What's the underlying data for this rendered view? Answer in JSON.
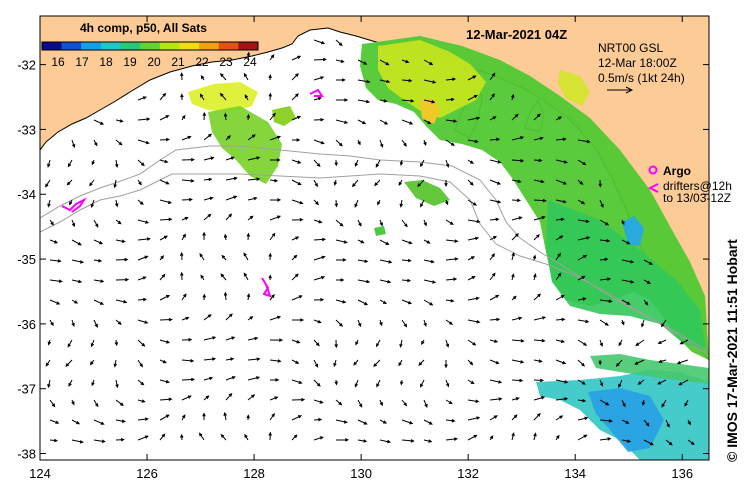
{
  "map": {
    "title": "12-Mar-2021 04Z",
    "product_label": "4h comp, p50, All Sats",
    "colorbar": {
      "ticks": [
        "16",
        "17",
        "18",
        "19",
        "20",
        "21",
        "22",
        "23",
        "24"
      ],
      "colors": [
        "#0a0a8c",
        "#1450d2",
        "#14a0e6",
        "#1ec8c8",
        "#28c878",
        "#64d232",
        "#b4e614",
        "#f0dc14",
        "#f0a014",
        "#e65014",
        "#a01414"
      ]
    },
    "current_legend": {
      "line1": "NRT00 GSL",
      "line2": "12-Mar 18:00Z",
      "line3": "0.5m/s (1kt 24h)"
    },
    "drifter_legend": {
      "argo_label": "Argo",
      "drifters_label": "drifters@12h",
      "drifters_until": "to 13/03-12Z"
    },
    "credit": "© IMOS 17-Mar-2021 11:51 Hobart",
    "x_axis": {
      "ticks": [
        "124",
        "126",
        "128",
        "130",
        "132",
        "134",
        "136"
      ],
      "values": [
        124,
        126,
        128,
        130,
        132,
        134,
        136
      ]
    },
    "y_axis": {
      "ticks": [
        "-32",
        "-33",
        "-34",
        "-35",
        "-36",
        "-37",
        "-38"
      ],
      "values": [
        -32,
        -33,
        -34,
        -35,
        -36,
        -37,
        -38
      ]
    },
    "lon_range": [
      124,
      136.5
    ],
    "lat_range": [
      -38.1,
      -31.25
    ],
    "colors": {
      "land": "#fccb96",
      "ocean": "#ffffff",
      "isobath": "#a0a0a0",
      "drifter": "#ff00ff",
      "arrow": "#000000"
    }
  }
}
